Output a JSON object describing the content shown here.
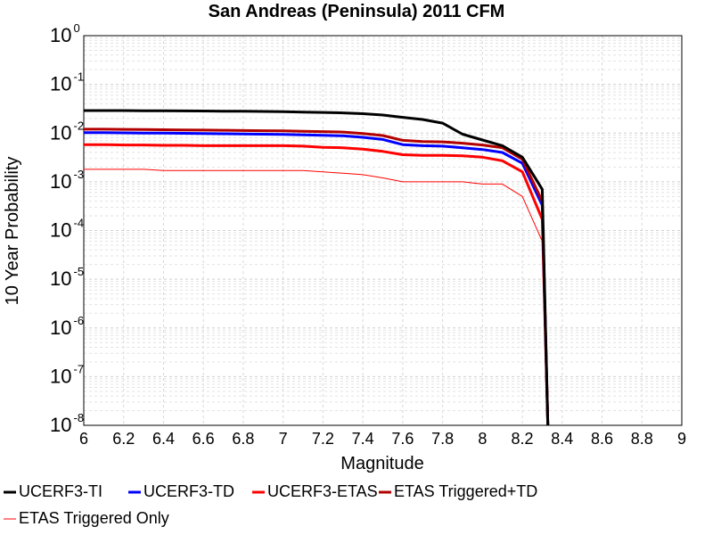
{
  "chart_data": {
    "type": "line",
    "title": "San Andreas (Peninsula) 2011 CFM",
    "xlabel": "Magnitude",
    "ylabel": "10 Year Probability",
    "xlim": [
      6,
      9
    ],
    "ylim": [
      1e-08,
      1
    ],
    "yscale": "log",
    "grid": true,
    "legend_position": "bottom",
    "x_ticks": [
      "6",
      "6.2",
      "6.4",
      "6.6",
      "6.8",
      "7",
      "7.2",
      "7.4",
      "7.6",
      "7.8",
      "8",
      "8.2",
      "8.4",
      "8.6",
      "8.8",
      "9"
    ],
    "y_ticks": [
      {
        "base": "10",
        "exp": "0"
      },
      {
        "base": "10",
        "exp": "-1"
      },
      {
        "base": "10",
        "exp": "-2"
      },
      {
        "base": "10",
        "exp": "-3"
      },
      {
        "base": "10",
        "exp": "-4"
      },
      {
        "base": "10",
        "exp": "-5"
      },
      {
        "base": "10",
        "exp": "-6"
      },
      {
        "base": "10",
        "exp": "-7"
      },
      {
        "base": "10",
        "exp": "-8"
      }
    ],
    "x": [
      6.0,
      6.1,
      6.2,
      6.3,
      6.4,
      6.5,
      6.6,
      6.7,
      6.8,
      6.9,
      7.0,
      7.1,
      7.2,
      7.3,
      7.4,
      7.5,
      7.6,
      7.7,
      7.8,
      7.9,
      8.0,
      8.1,
      8.2,
      8.3,
      8.33
    ],
    "series": [
      {
        "name": "UCERF3-TI",
        "color": "#000000",
        "width": 3,
        "values": [
          0.029,
          0.029,
          0.029,
          0.0288,
          0.0286,
          0.0285,
          0.0284,
          0.0282,
          0.028,
          0.0278,
          0.0275,
          0.027,
          0.0265,
          0.026,
          0.025,
          0.0235,
          0.021,
          0.019,
          0.016,
          0.0095,
          0.0072,
          0.0055,
          0.0032,
          0.0007,
          5e-09
        ]
      },
      {
        "name": "UCERF3-TD",
        "color": "#0000ff",
        "width": 3,
        "values": [
          0.0102,
          0.0102,
          0.0101,
          0.01,
          0.01,
          0.0099,
          0.0098,
          0.0097,
          0.0096,
          0.0095,
          0.0094,
          0.0092,
          0.009,
          0.0088,
          0.0082,
          0.0074,
          0.0058,
          0.0055,
          0.0054,
          0.005,
          0.0046,
          0.004,
          0.0024,
          0.00033,
          5e-09
        ]
      },
      {
        "name": "UCERF3-ETAS",
        "color": "#ff0000",
        "width": 3,
        "values": [
          0.0058,
          0.0058,
          0.0057,
          0.0057,
          0.0056,
          0.0056,
          0.0055,
          0.0055,
          0.0055,
          0.0055,
          0.0055,
          0.0054,
          0.0051,
          0.005,
          0.0047,
          0.0042,
          0.0036,
          0.0035,
          0.0035,
          0.0034,
          0.0032,
          0.0027,
          0.0016,
          0.00017,
          5e-09
        ]
      },
      {
        "name": "ETAS Triggered+TD",
        "color": "#b30000",
        "width": 3,
        "values": [
          0.012,
          0.012,
          0.0119,
          0.0118,
          0.0117,
          0.0116,
          0.0115,
          0.0114,
          0.0113,
          0.0112,
          0.0111,
          0.0109,
          0.0107,
          0.0105,
          0.0098,
          0.0089,
          0.0071,
          0.0067,
          0.0066,
          0.0062,
          0.0057,
          0.005,
          0.0029,
          0.0004,
          5e-09
        ]
      },
      {
        "name": "ETAS Triggered Only",
        "color": "#ff0000",
        "width": 1,
        "values": [
          0.0018,
          0.0018,
          0.0018,
          0.0018,
          0.0017,
          0.0017,
          0.0017,
          0.0017,
          0.0017,
          0.0017,
          0.0017,
          0.0017,
          0.0016,
          0.0015,
          0.0014,
          0.0012,
          0.001,
          0.001,
          0.001,
          0.001,
          0.0009,
          0.0009,
          0.0005,
          6e-05,
          5e-09
        ]
      }
    ]
  }
}
